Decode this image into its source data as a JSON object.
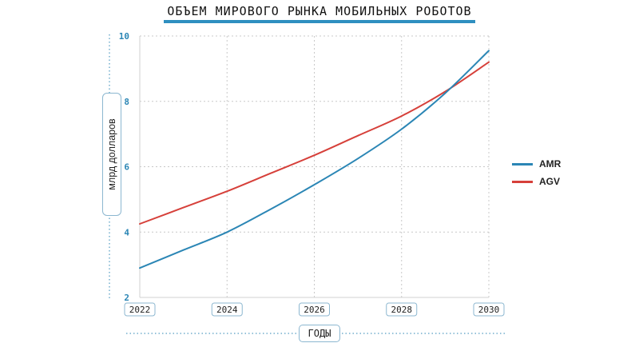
{
  "chart_data": {
    "type": "line",
    "title": "ОБЪЕМ МИРОВОГО РЫНКА МОБИЛЬНЫХ РОБОТОВ",
    "xlabel": "ГОДЫ",
    "ylabel": "млрд долларов",
    "xlim": [
      2022,
      2030
    ],
    "ylim": [
      2,
      10
    ],
    "x_ticks": [
      "2022",
      "2024",
      "2026",
      "2028",
      "2030"
    ],
    "y_ticks": [
      "2",
      "4",
      "6",
      "8",
      "10"
    ],
    "grid": true,
    "legend_position": "right",
    "x": [
      2022,
      2023,
      2024,
      2025,
      2026,
      2027,
      2028,
      2029,
      2030
    ],
    "series": [
      {
        "name": "AMR",
        "color": "#2b86b5",
        "values": [
          2.9,
          3.45,
          4.0,
          4.7,
          5.45,
          6.25,
          7.15,
          8.25,
          9.55
        ]
      },
      {
        "name": "AGV",
        "color": "#d6403a",
        "values": [
          4.25,
          4.75,
          5.25,
          5.8,
          6.35,
          6.95,
          7.55,
          8.3,
          9.2
        ]
      }
    ]
  }
}
